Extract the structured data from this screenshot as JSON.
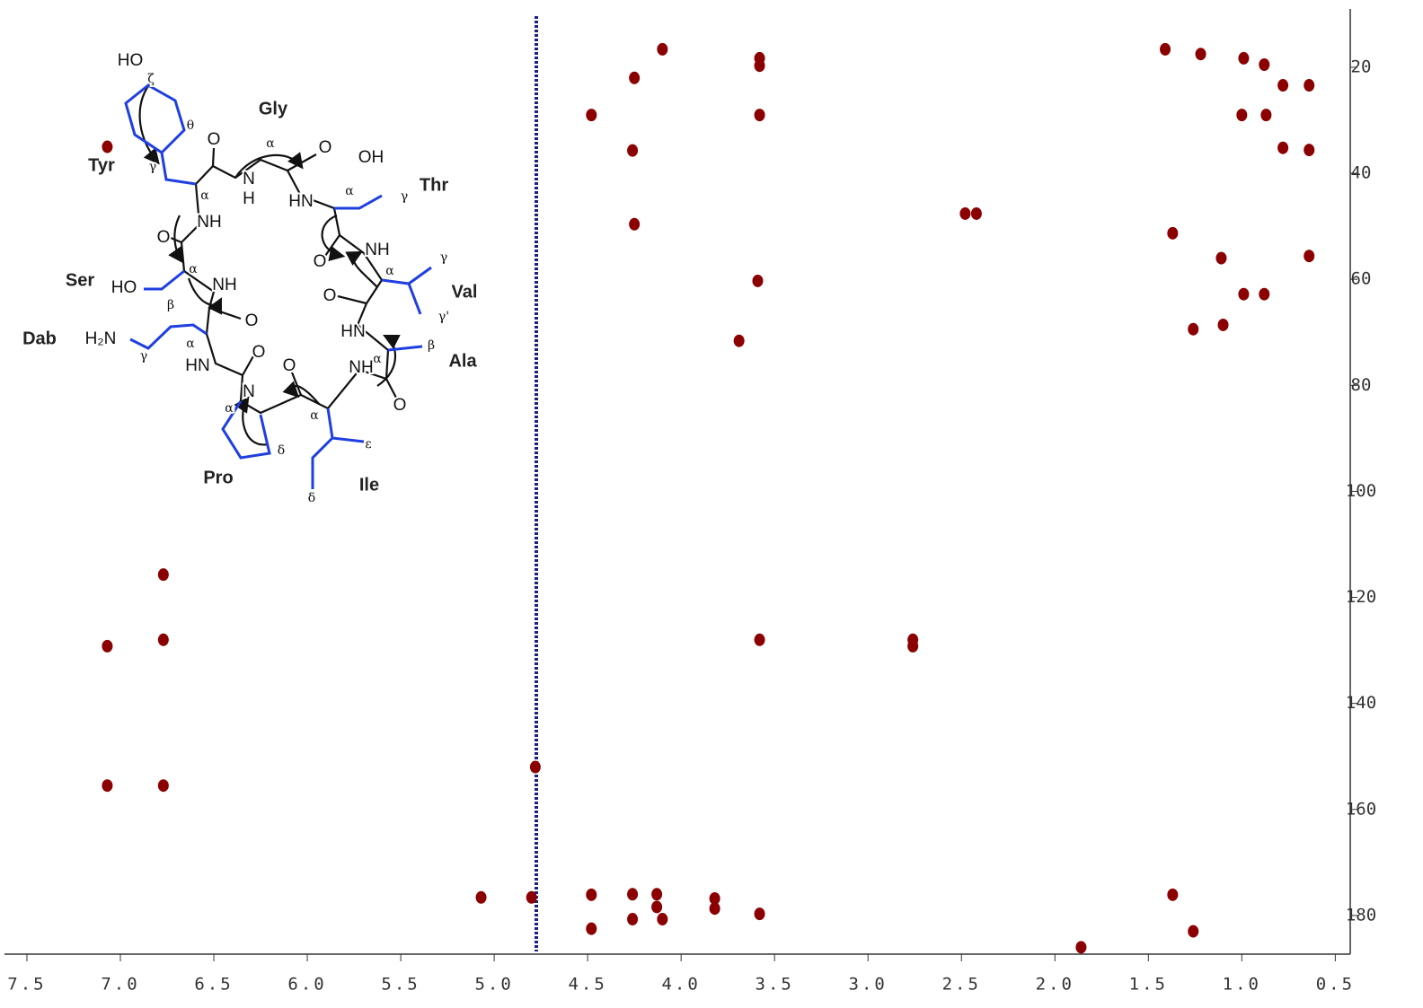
{
  "chart_data": {
    "type": "scatter",
    "color": "#8b0000",
    "xlim": [
      7.62,
      0.42
    ],
    "ylim": [
      9,
      187.3
    ],
    "xticks": [
      7.5,
      {
        "value": 7,
        "label": "7.0"
      },
      6.5,
      {
        "value": 6,
        "label": "6.0"
      },
      5.5,
      {
        "value": 5,
        "label": "5.0"
      },
      4.5,
      {
        "value": 4,
        "label": "4.0"
      },
      3.5,
      {
        "value": 3,
        "label": "3.0"
      },
      2.5,
      {
        "value": 2,
        "label": "2.0"
      },
      1.5,
      {
        "value": 1,
        "label": "1.0"
      },
      0.5
    ],
    "yticks": [
      20,
      40,
      60,
      80,
      100,
      120,
      140,
      160,
      180
    ],
    "x": [
      4.1,
      3.58,
      3.58,
      4.25,
      4.48,
      3.58,
      4.26,
      4.25,
      2.48,
      2.42,
      3.59,
      3.69,
      0.99,
      0.88,
      0.78,
      0.64,
      1.0,
      0.87,
      0.78,
      0.64,
      1.37,
      1.11,
      0.64,
      0.99,
      0.88,
      1.1,
      1.26,
      1.41,
      1.22,
      7.07,
      6.77,
      7.07,
      6.77,
      7.07,
      6.77,
      4.78,
      5.07,
      4.8,
      4.48,
      4.48,
      4.26,
      4.26,
      4.13,
      4.13,
      4.1,
      3.82,
      3.82,
      3.58,
      3.58,
      2.76,
      2.76,
      1.86,
      1.37,
      1.26
    ],
    "values": [
      16.6,
      18.3,
      19.7,
      22.0,
      29.0,
      29.0,
      35.7,
      49.6,
      47.6,
      47.6,
      60.3,
      71.6,
      18.3,
      19.5,
      23.4,
      23.4,
      29.0,
      29.0,
      35.2,
      35.6,
      51.3,
      56.0,
      55.6,
      62.8,
      62.8,
      68.6,
      69.4,
      16.6,
      17.5,
      35.0,
      115.7,
      129.2,
      128.0,
      155.5,
      155.5,
      152.0,
      176.6,
      176.6,
      176.1,
      182.5,
      176.0,
      180.7,
      176.0,
      178.4,
      180.7,
      176.8,
      178.7,
      179.7,
      128.0,
      128.0,
      129.2,
      186.0,
      176.1,
      183.0
    ]
  },
  "structure": {
    "residues": [
      "Tyr",
      "Gly",
      "Thr",
      "Ser",
      "Val",
      "Dab",
      "Ala",
      "Pro",
      "Ile"
    ],
    "atoms": [
      "HO",
      "ζ",
      "θ",
      "γ",
      "O",
      "N",
      "H",
      "α",
      "O",
      "OH",
      "HN",
      "α",
      "γ",
      "NH",
      "α",
      "O",
      "NH",
      "O",
      "α",
      "γ",
      "α",
      "HO",
      "NH",
      "β",
      "O",
      "γ'",
      "O",
      "H₂N",
      "α",
      "γ",
      "HN",
      "β",
      "HN",
      "α",
      "O",
      "O",
      "NH",
      "α",
      "N",
      "α",
      "O",
      "δ",
      "ε",
      "δ"
    ]
  }
}
